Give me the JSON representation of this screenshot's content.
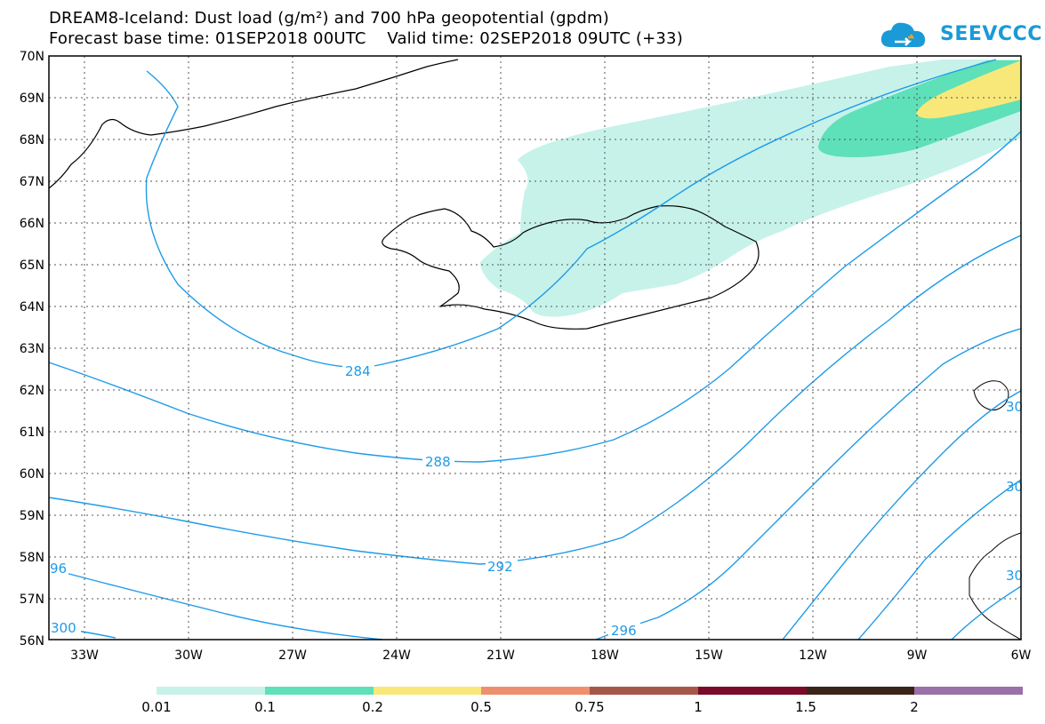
{
  "header": {
    "title_line1": "DREAM8-Iceland: Dust load (g/m²) and 700 hPa geopotential (gpdm)",
    "title_line2": "Forecast base time: 01SEP2018 00UTC    Valid time: 02SEP2018 09UTC (+33)",
    "logo_text": "SEEVCCC",
    "logo_icon": "cloud-icon"
  },
  "map": {
    "region": "Iceland",
    "lat_labels": [
      "70N",
      "69N",
      "68N",
      "67N",
      "66N",
      "65N",
      "64N",
      "63N",
      "62N",
      "61N",
      "60N",
      "59N",
      "58N",
      "57N",
      "56N"
    ],
    "lon_labels": [
      "33W",
      "30W",
      "27W",
      "24W",
      "21W",
      "18W",
      "15W",
      "12W",
      "9W",
      "6W"
    ],
    "contour_labels": [
      "284",
      "288",
      "292",
      "296",
      "300",
      "96",
      "30",
      "30",
      "30"
    ],
    "contour_color": "#1e9be8",
    "coastline_color": "#000000"
  },
  "colorbar": {
    "colors": [
      "#c6f2ea",
      "#5ee0b8",
      "#f8e87a",
      "#ee9070",
      "#a65848",
      "#7a0a2a",
      "#3a2418",
      "#9a70a8"
    ],
    "labels": [
      "0.01",
      "0.1",
      "0.2",
      "0.5",
      "0.75",
      "1",
      "1.5",
      "2"
    ]
  }
}
